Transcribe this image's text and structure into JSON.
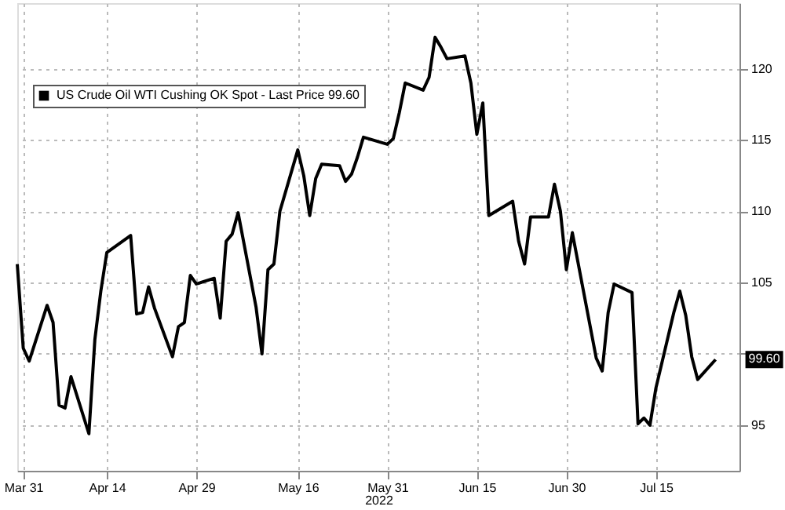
{
  "chart_data": {
    "type": "line",
    "xlabel": "2022",
    "x": [
      "2022-03-30",
      "2022-03-31",
      "2022-04-01",
      "2022-04-04",
      "2022-04-05",
      "2022-04-06",
      "2022-04-07",
      "2022-04-08",
      "2022-04-11",
      "2022-04-12",
      "2022-04-13",
      "2022-04-14",
      "2022-04-18",
      "2022-04-19",
      "2022-04-20",
      "2022-04-21",
      "2022-04-22",
      "2022-04-25",
      "2022-04-26",
      "2022-04-27",
      "2022-04-28",
      "2022-04-29",
      "2022-05-02",
      "2022-05-03",
      "2022-05-04",
      "2022-05-05",
      "2022-05-06",
      "2022-05-09",
      "2022-05-10",
      "2022-05-11",
      "2022-05-12",
      "2022-05-13",
      "2022-05-16",
      "2022-05-17",
      "2022-05-18",
      "2022-05-19",
      "2022-05-20",
      "2022-05-23",
      "2022-05-24",
      "2022-05-25",
      "2022-05-26",
      "2022-05-27",
      "2022-05-31",
      "2022-06-01",
      "2022-06-02",
      "2022-06-03",
      "2022-06-06",
      "2022-06-07",
      "2022-06-08",
      "2022-06-09",
      "2022-06-10",
      "2022-06-13",
      "2022-06-14",
      "2022-06-15",
      "2022-06-16",
      "2022-06-17",
      "2022-06-21",
      "2022-06-22",
      "2022-06-23",
      "2022-06-24",
      "2022-06-27",
      "2022-06-28",
      "2022-06-29",
      "2022-06-30",
      "2022-07-01",
      "2022-07-05",
      "2022-07-06",
      "2022-07-07",
      "2022-07-08",
      "2022-07-11",
      "2022-07-12",
      "2022-07-13",
      "2022-07-14",
      "2022-07-15",
      "2022-07-18",
      "2022-07-19",
      "2022-07-20",
      "2022-07-21",
      "2022-07-22",
      "2022-07-25"
    ],
    "series": [
      {
        "name": "US Crude Oil WTI Cushing OK Spot - Last Price 99.60",
        "color": "#000000",
        "values": [
          106.3,
          100.4,
          99.5,
          103.4,
          102.2,
          96.4,
          96.2,
          98.4,
          94.4,
          101.0,
          104.4,
          107.1,
          108.3,
          102.8,
          102.9,
          104.7,
          103.2,
          99.8,
          101.9,
          102.2,
          105.5,
          104.9,
          105.3,
          102.5,
          107.9,
          108.4,
          109.9,
          103.3,
          100.0,
          105.9,
          106.3,
          110.0,
          114.3,
          112.5,
          109.7,
          112.3,
          113.3,
          113.2,
          112.1,
          112.6,
          113.8,
          115.2,
          114.7,
          115.1,
          116.9,
          119.0,
          118.5,
          119.4,
          122.2,
          121.5,
          120.7,
          120.9,
          119.0,
          115.4,
          117.6,
          109.7,
          110.7,
          107.9,
          106.3,
          109.6,
          109.6,
          111.9,
          110.0,
          105.9,
          108.5,
          99.7,
          98.8,
          102.9,
          104.9,
          104.3,
          95.1,
          95.5,
          95.0,
          97.6,
          102.9,
          104.4,
          102.7,
          99.8,
          98.2,
          99.6
        ]
      }
    ],
    "xlim": [
      "2022-03-30",
      "2022-07-29"
    ],
    "xticks": [
      {
        "value": "2022-03-31",
        "label": "Mar 31"
      },
      {
        "value": "2022-04-14",
        "label": "Apr 14"
      },
      {
        "value": "2022-04-29",
        "label": "Apr 29"
      },
      {
        "value": "2022-05-16",
        "label": "May 16"
      },
      {
        "value": "2022-05-31",
        "label": "May 31"
      },
      {
        "value": "2022-06-15",
        "label": "Jun 15"
      },
      {
        "value": "2022-06-30",
        "label": "Jun 30"
      },
      {
        "value": "2022-07-15",
        "label": "Jul 15"
      }
    ],
    "ylim": [
      91.8,
      124.6
    ],
    "yticks": [
      95,
      {
        "value": 100,
        "label": null
      },
      105,
      110,
      115,
      120
    ],
    "annotations": [
      {
        "text": "99.60",
        "x": "2022-07-25",
        "y": 99.6
      }
    ],
    "grid": true,
    "legend": "top left",
    "marker": "none",
    "line_style": "solid"
  }
}
